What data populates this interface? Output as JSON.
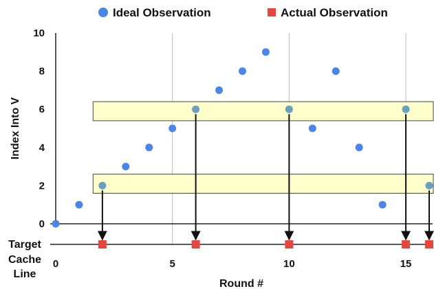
{
  "colors": {
    "ideal": "#4a86e8",
    "actual": "#e8463c",
    "band_fill": "#ffffcc",
    "band_stroke": "#444444",
    "grid": "#bbbbbb",
    "axis": "#222222"
  },
  "chart_data": {
    "type": "scatter",
    "xlabel": "Round #",
    "ylabel": "Index Into V",
    "secondary_label": "Target Cache Line",
    "secondary_label_lines": [
      "Target",
      "Cache",
      "Line"
    ],
    "xlim": [
      0,
      16
    ],
    "ylim": [
      0,
      10
    ],
    "xticks": [
      0,
      5,
      10,
      15
    ],
    "yticks": [
      0,
      2,
      4,
      6,
      8,
      10
    ],
    "grid": true,
    "legend_position": "top",
    "series": [
      {
        "name": "Ideal Observation",
        "marker": "circle",
        "x": [
          0,
          1,
          2,
          3,
          4,
          5,
          6,
          7,
          8,
          9,
          10,
          11,
          12,
          13,
          14,
          15,
          16
        ],
        "y": [
          0,
          1,
          2,
          3,
          4,
          5,
          6,
          7,
          8,
          9,
          6,
          5,
          8,
          4,
          1,
          6,
          2
        ]
      },
      {
        "name": "Actual Observation",
        "marker": "square",
        "x": [
          2,
          6,
          10,
          15,
          16
        ]
      }
    ],
    "bands": [
      {
        "y_from": 5.4,
        "y_to": 6.4,
        "x_from": 1.6,
        "x_to": 16.2
      },
      {
        "y_from": 1.6,
        "y_to": 2.6,
        "x_from": 1.6,
        "x_to": 16.2
      }
    ],
    "arrows": [
      {
        "from_x": 2,
        "from_y": 2
      },
      {
        "from_x": 6,
        "from_y": 6
      },
      {
        "from_x": 10,
        "from_y": 6
      },
      {
        "from_x": 15,
        "from_y": 6
      },
      {
        "from_x": 16,
        "from_y": 2
      }
    ]
  }
}
